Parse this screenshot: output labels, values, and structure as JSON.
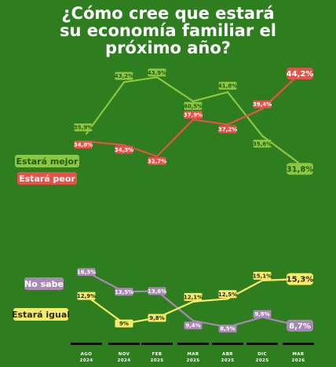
{
  "chart_data": {
    "type": "line",
    "title": [
      "¿Cómo cree que estará",
      "su economía familiar el",
      "próximo año?"
    ],
    "categories": [
      [
        "AGO",
        "2024"
      ],
      [
        "NOV",
        "2024"
      ],
      [
        "FEB",
        "2025"
      ],
      [
        "MAR",
        "2025"
      ],
      [
        "ABR",
        "2025"
      ],
      [
        "DIC",
        "2025"
      ],
      [
        "MAR",
        "2026"
      ]
    ],
    "series": [
      {
        "key": "mejor",
        "name": "Estará mejor",
        "color": "#8dc63f",
        "label_text_color": "#1f5c14",
        "values": [
          35.9,
          43.2,
          43.9,
          40.5,
          41.8,
          35.6,
          31.8
        ],
        "labels": [
          "35,9%",
          "43,2%",
          "43,9%",
          "40,5%",
          "41,8%",
          "35,6%",
          "31,8%"
        ]
      },
      {
        "key": "peor",
        "name": "Estará peor",
        "color": "#e8514a",
        "label_text_color": "#ffffff",
        "values": [
          34.8,
          34.3,
          32.7,
          37.9,
          37.2,
          39.4,
          44.2
        ],
        "labels": [
          "34,8%",
          "34,3%",
          "32,7%",
          "37,9%",
          "37,2%",
          "39,4%",
          "44,2%"
        ]
      },
      {
        "key": "nosabe",
        "name": "No sabe",
        "color": "#a988b5",
        "label_text_color": "#ffffff",
        "values": [
          16.3,
          13.5,
          13.6,
          9.4,
          8.5,
          9.9,
          8.7
        ],
        "labels": [
          "16,3%",
          "13,5%",
          "13,6%",
          "9,4%",
          "8,5%",
          "9,9%",
          "8,7%"
        ]
      },
      {
        "key": "igual",
        "name": "Estará igual",
        "color": "#f6ec6a",
        "label_text_color": "#2b2b00",
        "values": [
          12.9,
          9.0,
          9.8,
          12.1,
          12.5,
          15.1,
          15.3
        ],
        "labels": [
          "12,9%",
          "9%",
          "9,8%",
          "12,1%",
          "12,5%",
          "15,1%",
          "15,3%"
        ]
      }
    ]
  }
}
